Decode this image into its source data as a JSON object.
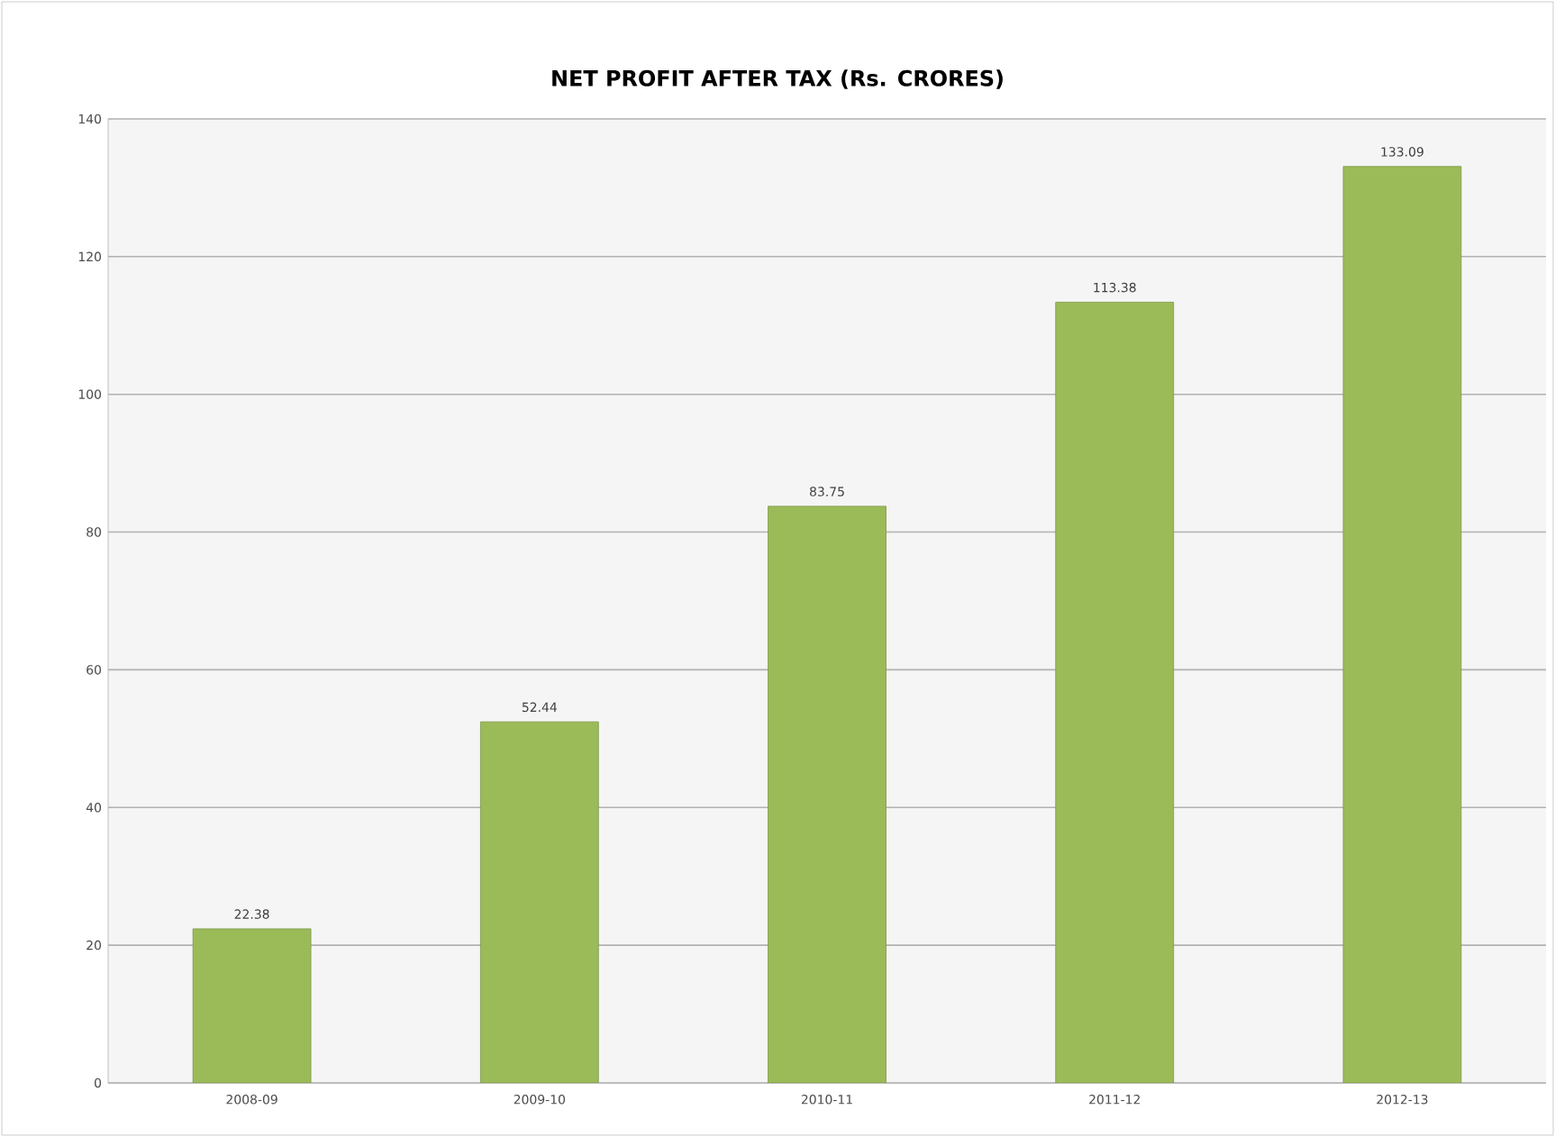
{
  "chart_data": {
    "type": "bar",
    "title": "NET PROFIT AFTER TAX (Rs. CRORES)",
    "categories": [
      "2008-09",
      "2009-10",
      "2010-11",
      "2011-12",
      "2012-13"
    ],
    "values": [
      22.38,
      52.44,
      83.75,
      113.38,
      133.09
    ],
    "color": "#9bbb59",
    "ylim": [
      0,
      140
    ],
    "yticks": [
      0,
      20,
      40,
      60,
      80,
      100,
      120,
      140
    ],
    "grid": "y",
    "data_labels": true
  }
}
